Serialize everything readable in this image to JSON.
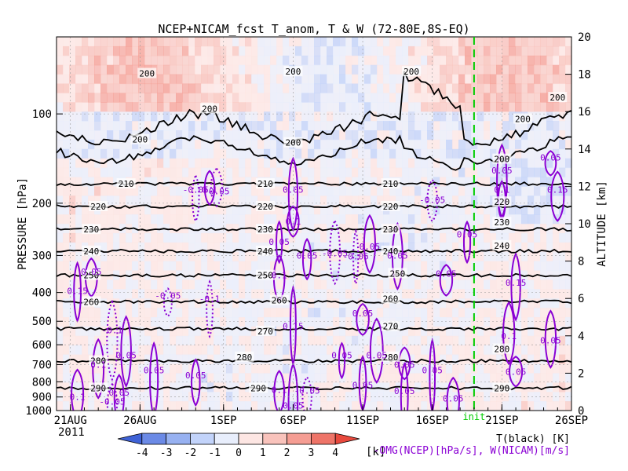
{
  "chart_data": {
    "type": "heatmap",
    "title": "NCEP+NICAM_fcst T_anom, T & W  (72-80E,8S-EQ)",
    "ylabel": "PRESSURE [hPa]",
    "y2label": "ALTITUDE [km]",
    "ylim": [
      1000,
      55
    ],
    "y2lim": [
      0,
      20
    ],
    "y_scale": "log",
    "x_ticks": [
      {
        "date": "2011-08-21",
        "label": "21AUG"
      },
      {
        "date": "2011-08-26",
        "label": "26AUG"
      },
      {
        "date": "2011-09-01",
        "label": "1SEP"
      },
      {
        "date": "2011-09-06",
        "label": "6SEP"
      },
      {
        "date": "2011-09-11",
        "label": "11SEP"
      },
      {
        "date": "2011-09-16",
        "label": "16SEP"
      },
      {
        "date": "2011-09-21",
        "label": "21SEP"
      },
      {
        "date": "2011-09-26",
        "label": "26SEP"
      }
    ],
    "x_year": "2011",
    "xlim": [
      "2011-08-20",
      "2011-09-26"
    ],
    "y_ticks": [
      100,
      200,
      300,
      400,
      500,
      600,
      700,
      800,
      900,
      1000
    ],
    "y2_ticks": [
      0,
      2,
      4,
      6,
      8,
      10,
      12,
      14,
      16,
      18,
      20
    ],
    "init_line": {
      "date": "2011-09-19",
      "label": "init",
      "color": "#00cc00"
    },
    "colorbar": {
      "ticks": [
        -4,
        -3,
        -2,
        -1,
        0,
        1,
        2,
        3,
        4
      ],
      "unit": "[k]",
      "colors": [
        "#3f62d6",
        "#6b8ae6",
        "#97b1f1",
        "#c2d3fa",
        "#e8eefc",
        "#fde6e3",
        "#f9c3bc",
        "#f59d93",
        "#ee7468",
        "#e8493d"
      ]
    },
    "temperature_contours": {
      "color": "#000000",
      "levels": [
        {
          "value": 290,
          "p": 840
        },
        {
          "value": 280,
          "p": 680
        },
        {
          "value": 270,
          "p": 530
        },
        {
          "value": 260,
          "p": 430
        },
        {
          "value": 250,
          "p": 350
        },
        {
          "value": 240,
          "p": 290
        },
        {
          "value": 230,
          "p": 245
        },
        {
          "value": 220,
          "p": 205
        },
        {
          "value": 210,
          "p": 172
        }
      ],
      "labels": [
        {
          "text": "290",
          "date": "2011-08-23",
          "p": 840
        },
        {
          "text": "290",
          "date": "2011-09-03.5",
          "p": 840
        },
        {
          "text": "290",
          "date": "2011-09-21",
          "p": 840
        },
        {
          "text": "280",
          "date": "2011-08-23",
          "p": 680
        },
        {
          "text": "280",
          "date": "2011-09-02.5",
          "p": 660
        },
        {
          "text": "280",
          "date": "2011-09-13",
          "p": 660
        },
        {
          "text": "280",
          "date": "2011-09-21",
          "p": 620
        },
        {
          "text": "270",
          "date": "2011-09-04",
          "p": 540
        },
        {
          "text": "270",
          "date": "2011-09-13",
          "p": 520
        },
        {
          "text": "260",
          "date": "2011-08-22.5",
          "p": 430
        },
        {
          "text": "260",
          "date": "2011-09-05",
          "p": 425
        },
        {
          "text": "260",
          "date": "2011-09-13",
          "p": 420
        },
        {
          "text": "250",
          "date": "2011-08-22.5",
          "p": 350
        },
        {
          "text": "250",
          "date": "2011-09-04",
          "p": 350
        },
        {
          "text": "250",
          "date": "2011-09-13.5",
          "p": 345
        },
        {
          "text": "240",
          "date": "2011-08-22.5",
          "p": 290
        },
        {
          "text": "240",
          "date": "2011-09-04",
          "p": 290
        },
        {
          "text": "240",
          "date": "2011-09-13",
          "p": 290
        },
        {
          "text": "240",
          "date": "2011-09-21",
          "p": 278
        },
        {
          "text": "230",
          "date": "2011-08-22.5",
          "p": 245
        },
        {
          "text": "230",
          "date": "2011-09-04",
          "p": 245
        },
        {
          "text": "230",
          "date": "2011-09-13",
          "p": 245
        },
        {
          "text": "230",
          "date": "2011-09-21",
          "p": 232
        },
        {
          "text": "220",
          "date": "2011-08-23",
          "p": 205
        },
        {
          "text": "220",
          "date": "2011-09-04",
          "p": 205
        },
        {
          "text": "220",
          "date": "2011-09-13",
          "p": 205
        },
        {
          "text": "220",
          "date": "2011-09-21",
          "p": 198
        },
        {
          "text": "210",
          "date": "2011-08-25",
          "p": 172
        },
        {
          "text": "210",
          "date": "2011-09-04",
          "p": 172
        },
        {
          "text": "210",
          "date": "2011-09-13",
          "p": 172
        },
        {
          "text": "200",
          "date": "2011-08-26.5",
          "p": 73
        },
        {
          "text": "200",
          "date": "2011-08-31",
          "p": 96
        },
        {
          "text": "200",
          "date": "2011-08-26",
          "p": 122
        },
        {
          "text": "200",
          "date": "2011-09-06",
          "p": 125
        },
        {
          "text": "200",
          "date": "2011-09-06",
          "p": 72
        },
        {
          "text": "200",
          "date": "2011-09-14.5",
          "p": 72
        },
        {
          "text": "200",
          "date": "2011-09-22.5",
          "p": 104
        },
        {
          "text": "200",
          "date": "2011-09-25",
          "p": 88
        },
        {
          "text": "200",
          "date": "2011-09-21",
          "p": 142
        }
      ]
    },
    "w_contours": {
      "color": "#8a00d4",
      "legend": "-OMG(NCEP)[hPa/s], W(NICAM)[m/s]",
      "labels": [
        {
          "text": "-0.05",
          "date": "2011-08-31.5",
          "p": 182
        },
        {
          "text": "-0.05",
          "date": "2011-08-28",
          "p": 410
        },
        {
          "text": "-0.05",
          "date": "2011-09-07",
          "p": 855
        },
        {
          "text": "-0.05",
          "date": "2011-08-24",
          "p": 932
        },
        {
          "text": "-0.05",
          "date": "2011-09-10.5",
          "p": 302
        },
        {
          "text": "-0.05",
          "date": "2011-08-30",
          "p": 180
        },
        {
          "text": "-0.05",
          "date": "2011-09-16",
          "p": 195
        },
        {
          "text": "-0.05",
          "date": "2011-09-09",
          "p": 295
        },
        {
          "text": "-0.1",
          "date": "2011-08-24",
          "p": 535
        },
        {
          "text": "-0.1",
          "date": "2011-08-31",
          "p": 420
        },
        {
          "text": "0.05",
          "date": "2011-09-06",
          "p": 180
        },
        {
          "text": "0.05",
          "date": "2011-09-05",
          "p": 270
        },
        {
          "text": "0.05",
          "date": "2011-09-07",
          "p": 300
        },
        {
          "text": "0.05",
          "date": "2011-08-22.5",
          "p": 340
        },
        {
          "text": "0.05",
          "date": "2011-09-11.5",
          "p": 280
        },
        {
          "text": "0.05",
          "date": "2011-09-13.5",
          "p": 300
        },
        {
          "text": "0.05",
          "date": "2011-09-17",
          "p": 345
        },
        {
          "text": "0.05",
          "date": "2011-09-11",
          "p": 470
        },
        {
          "text": "0.05",
          "date": "2011-09-09.5",
          "p": 650
        },
        {
          "text": "0.05",
          "date": "2011-09-12",
          "p": 650
        },
        {
          "text": "0.05",
          "date": "2011-09-14",
          "p": 700
        },
        {
          "text": "0.05",
          "date": "2011-09-16",
          "p": 730
        },
        {
          "text": "0.05",
          "date": "2011-09-18.5",
          "p": 255
        },
        {
          "text": "0.05",
          "date": "2011-09-21",
          "p": 155
        },
        {
          "text": "0.05",
          "date": "2011-09-24.5",
          "p": 140
        },
        {
          "text": "0.05",
          "date": "2011-09-22",
          "p": 740
        },
        {
          "text": "0.05",
          "date": "2011-09-24.5",
          "p": 580
        },
        {
          "text": "0.05",
          "date": "2011-08-27",
          "p": 730
        },
        {
          "text": "0.05",
          "date": "2011-08-30",
          "p": 760
        },
        {
          "text": "0.05",
          "date": "2011-09-11",
          "p": 820
        },
        {
          "text": "0.05",
          "date": "2011-09-14",
          "p": 860
        },
        {
          "text": "0.05",
          "date": "2011-09-17.5",
          "p": 910
        },
        {
          "text": "0.05",
          "date": "2011-09-06",
          "p": 960
        },
        {
          "text": "0.05",
          "date": "2011-08-25",
          "p": 650
        },
        {
          "text": "0.05",
          "date": "2011-08-24.5",
          "p": 870
        },
        {
          "text": "0.1",
          "date": "2011-09-06",
          "p": 230
        },
        {
          "text": "0.1",
          "date": "2011-09-05",
          "p": 350
        },
        {
          "text": "0.1",
          "date": "2011-08-23",
          "p": 700
        },
        {
          "text": "0.1",
          "date": "2011-09-21",
          "p": 180
        },
        {
          "text": "0.1",
          "date": "2011-09-21.5",
          "p": 560
        },
        {
          "text": "0.1",
          "date": "2011-09-05",
          "p": 850
        },
        {
          "text": "0.15",
          "date": "2011-08-21.5",
          "p": 395
        },
        {
          "text": "0.15",
          "date": "2011-09-06",
          "p": 520
        },
        {
          "text": "0.15",
          "date": "2011-09-22",
          "p": 370
        },
        {
          "text": "0.15",
          "date": "2011-09-25",
          "p": 180
        },
        {
          "text": "0.1",
          "date": "2011-08-21.5",
          "p": 900
        },
        {
          "text": "0.1",
          "date": "2011-08-31",
          "p": 180
        }
      ]
    },
    "legend_t": "T(black) [K]"
  }
}
